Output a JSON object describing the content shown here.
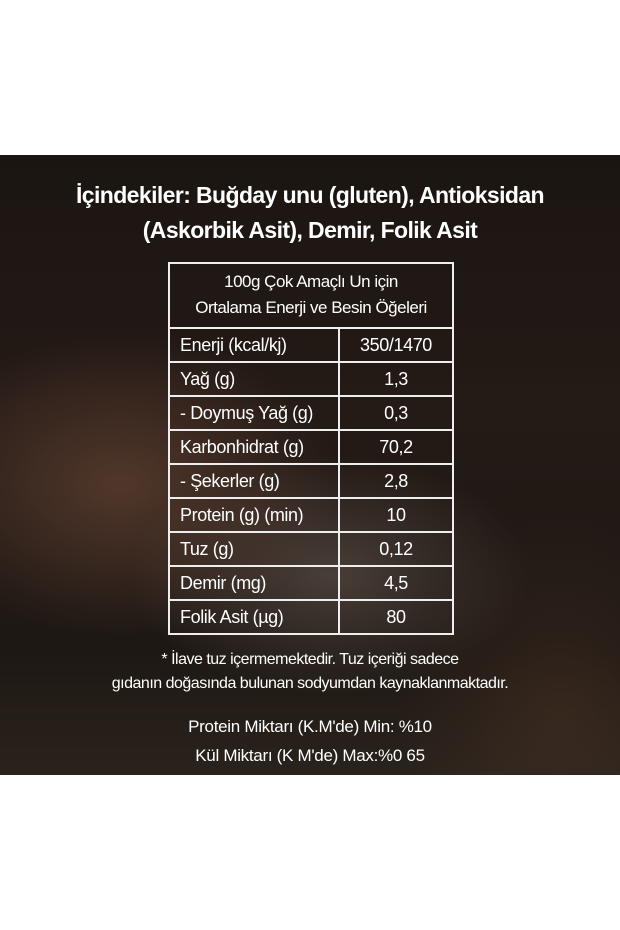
{
  "ingredients": {
    "line1": "İçindekiler: Buğday unu (gluten), Antioksidan",
    "line2": "(Askorbik Asit), Demir, Folik Asit"
  },
  "table": {
    "header_line1": "100g Çok Amaçlı Un için",
    "header_line2": "Ortalama Enerji ve Besin Öğeleri",
    "rows": [
      {
        "label": "Enerji (kcal/kj)",
        "value": "350/1470"
      },
      {
        "label": "Yağ (g)",
        "value": "1,3"
      },
      {
        "label": "- Doymuş Yağ (g)",
        "value": "0,3"
      },
      {
        "label": "Karbonhidrat (g)",
        "value": "70,2"
      },
      {
        "label": "- Şekerler (g)",
        "value": "2,8"
      },
      {
        "label": "Protein (g) (min)",
        "value": "10"
      },
      {
        "label": "Tuz (g)",
        "value": "0,12"
      },
      {
        "label": "Demir (mg)",
        "value": "4,5"
      },
      {
        "label": "Folik Asit (µg)",
        "value": "80"
      }
    ]
  },
  "note": {
    "line1": "* İlave tuz içermemektedir. Tuz içeriği sadece",
    "line2": "gıdanın doğasında bulunan sodyumdan kaynaklanmaktadır."
  },
  "specs": {
    "protein": "Protein Miktarı (K.M'de) Min: %10",
    "ash": "Kül Miktarı (K M'de) Max:%0 65"
  }
}
